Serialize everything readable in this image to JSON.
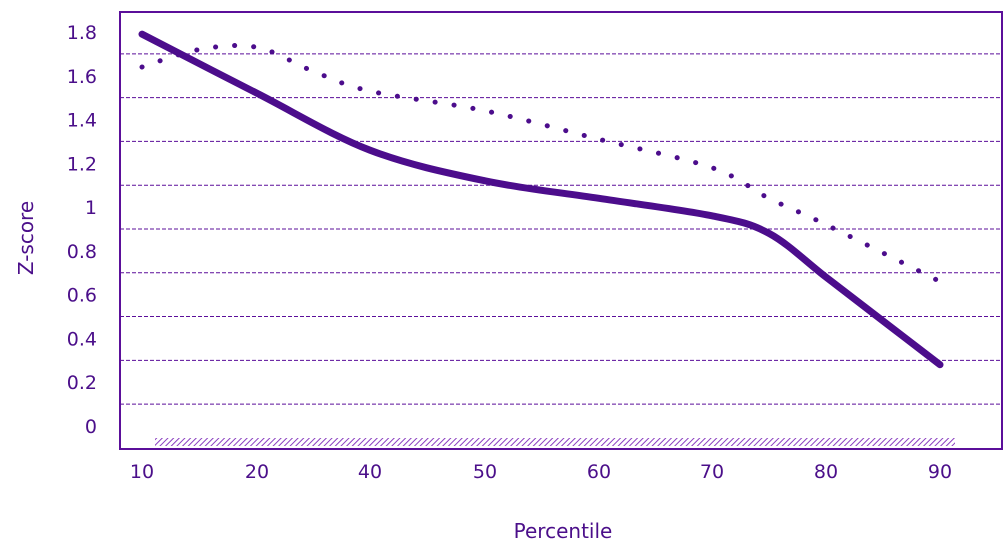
{
  "chart_data": {
    "type": "line",
    "title": "",
    "xlabel": "Percentile",
    "ylabel": "Z-score",
    "x_tick_labels": [
      "10",
      "20",
      "40",
      "50",
      "60",
      "70",
      "80",
      "90"
    ],
    "y_tick_labels": [
      "0",
      "0.2",
      "0.4",
      "0.6",
      "0.8",
      "1",
      "1.2",
      "1.4",
      "1.6",
      "1.8"
    ],
    "ylim": [
      0,
      1.9
    ],
    "grid": "horizontal-dashed",
    "colors": {
      "axis": "#5b0f9a",
      "solid_line": "#4c0d8c",
      "dotted_line": "#4c0d8c",
      "grid": "#5b0f9a",
      "text": "#4b0f8a"
    },
    "series": [
      {
        "style": "solid",
        "x": [
          10,
          20,
          40,
          50,
          60,
          70,
          75,
          80,
          85,
          90
        ],
        "y": [
          1.79,
          1.52,
          1.26,
          1.12,
          1.04,
          0.96,
          0.88,
          0.68,
          0.48,
          0.28
        ]
      },
      {
        "style": "dotted",
        "x": [
          10,
          15,
          20,
          30,
          40,
          50,
          60,
          70,
          75,
          80,
          90
        ],
        "y": [
          1.64,
          1.72,
          1.73,
          1.62,
          1.53,
          1.44,
          1.31,
          1.18,
          1.04,
          0.92,
          0.66
        ]
      }
    ]
  }
}
